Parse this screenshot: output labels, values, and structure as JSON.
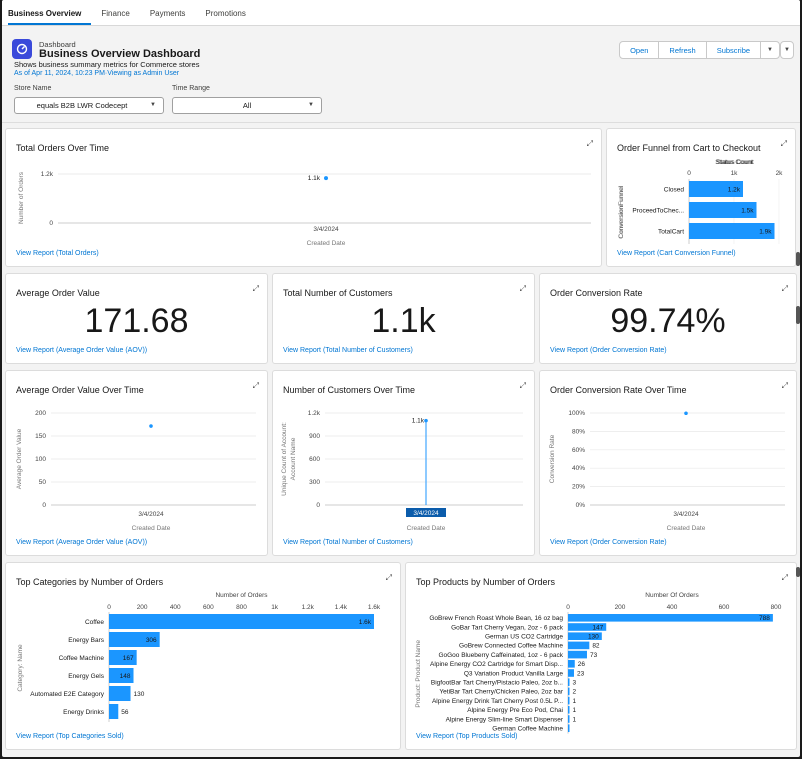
{
  "tabs": [
    "Business Overview",
    "Finance",
    "Payments",
    "Promotions"
  ],
  "header": {
    "eyebrow": "Dashboard",
    "title": "Business Overview Dashboard",
    "subtitle": "Shows business summary metrics for Commerce stores",
    "as_of": "As of Apr 11, 2024, 10:23 PM·Viewing as Admin User",
    "buttons": {
      "open": "Open",
      "refresh": "Refresh",
      "subscribe": "Subscribe"
    }
  },
  "filters": {
    "store_label": "Store Name",
    "store_value": "equals B2B LWR Codecept",
    "time_label": "Time Range",
    "time_value": "All"
  },
  "colors": {
    "bar": "#1b96ff",
    "link": "#0176d3",
    "dark_bar": "#0b5cab"
  },
  "cards": {
    "orders_time": {
      "title": "Total Orders Over Time",
      "report": "View Report (Total Orders)",
      "chart_data": {
        "type": "scatter",
        "ylabel": "Number of Orders",
        "xlabel": "Created Date",
        "y_ticks": [
          "1.2k",
          "0"
        ],
        "x": [
          "3/4/2024"
        ],
        "values": [
          1100
        ],
        "point_label": "1.1k",
        "ylim": [
          0,
          1200
        ]
      }
    },
    "funnel": {
      "title": "Order Funnel from Cart to Checkout",
      "report": "View Report (Cart Conversion Funnel)",
      "chart_data": {
        "type": "bar",
        "xlabel": "Status Count",
        "ylabel": "ConversionFunnel",
        "x_ticks": [
          "0",
          "1k",
          "2k"
        ],
        "xlim": [
          0,
          2000
        ],
        "categories": [
          "Closed",
          "ProceedToChec...",
          "TotalCart"
        ],
        "values": [
          1200,
          1500,
          1900
        ],
        "labels": [
          "1.2k",
          "1.5k",
          "1.9k"
        ]
      }
    },
    "aov": {
      "title": "Average Order Value",
      "value": "171.68",
      "report": "View Report (Average Order Value (AOV))"
    },
    "customers": {
      "title": "Total Number of Customers",
      "value": "1.1k",
      "report": "View Report (Total Number of Customers)"
    },
    "conversion": {
      "title": "Order Conversion Rate",
      "value": "99.74%",
      "report": "View Report (Order Conversion Rate)"
    },
    "aov_time": {
      "title": "Average Order Value Over Time",
      "report": "View Report (Average Order Value (AOV))",
      "chart_data": {
        "type": "scatter",
        "ylabel": "Average Order Value",
        "xlabel": "Created Date",
        "y_ticks": [
          "200",
          "150",
          "100",
          "50",
          "0"
        ],
        "ylim": [
          0,
          200
        ],
        "x": [
          "3/4/2024"
        ],
        "values": [
          171.68
        ]
      }
    },
    "customers_time": {
      "title": "Number of Customers Over Time",
      "report": "View Report (Total Number of Customers)",
      "chart_data": {
        "type": "scatter",
        "ylabel": "Unique Count of Account: Account Name",
        "xlabel": "Created Date",
        "y_ticks": [
          "1.2k",
          "900",
          "600",
          "300",
          "0"
        ],
        "ylim": [
          0,
          1200
        ],
        "x": [
          "3/4/2024"
        ],
        "values": [
          1100
        ],
        "point_label": "1.1k"
      }
    },
    "conversion_time": {
      "title": "Order Conversion Rate Over Time",
      "report": "View Report (Order Conversion Rate)",
      "chart_data": {
        "type": "scatter",
        "ylabel": "Conversion Rate",
        "xlabel": "Created Date",
        "y_ticks": [
          "100%",
          "80%",
          "60%",
          "40%",
          "20%",
          "0%"
        ],
        "ylim": [
          0,
          100
        ],
        "x": [
          "3/4/2024"
        ],
        "values": [
          99.74
        ]
      }
    },
    "top_categories": {
      "title": "Top Categories by Number of Orders",
      "report": "View Report (Top Categories Sold)",
      "chart_data": {
        "type": "bar",
        "xlabel": "Number of Orders",
        "ylabel": "Category: Name",
        "x_ticks": [
          "0",
          "200",
          "400",
          "600",
          "800",
          "1k",
          "1.2k",
          "1.4k",
          "1.6k"
        ],
        "xlim": [
          0,
          1600
        ],
        "categories": [
          "Coffee",
          "Energy Bars",
          "Coffee Machine",
          "Energy Gels",
          "Automated E2E Category",
          "Energy Drinks"
        ],
        "values": [
          1600,
          306,
          167,
          148,
          130,
          56
        ],
        "labels": [
          "1.6k",
          "306",
          "167",
          "148",
          "130",
          "56"
        ]
      }
    },
    "top_products": {
      "title": "Top Products by Number of Orders",
      "report": "View Report (Top Products Sold)",
      "chart_data": {
        "type": "bar",
        "xlabel": "Number Of Orders",
        "ylabel": "Product: Product Name",
        "x_ticks": [
          "0",
          "200",
          "400",
          "600",
          "800"
        ],
        "xlim": [
          0,
          800
        ],
        "categories": [
          "GoBrew French Roast Whole Bean, 16 oz bag",
          "GoBar Tart Cherry Vegan, 2oz - 6 pack",
          "German US CO2 Cartridge",
          "GoBrew Connected Coffee Machine",
          "GoGoo Blueberry Caffeinated, 1oz - 6 pack",
          "Alpine Energy CO2 Cartridge for Smart Disp...",
          "Q3 Variation Product Vanilla Large",
          "BigfootBar Tart Cherry/Pistacio Paleo, 2oz b...",
          "YetiBar Tart Cherry/Chicken Paleo, 2oz bar",
          "Alpine Energy Drink Tart Cherry Post 0.5L P...",
          "Alpine Energy Pre Eco Pod, Chai",
          "Alpine Energy Slim-line Smart Dispenser",
          "German Coffee Machine"
        ],
        "values": [
          788,
          147,
          130,
          82,
          73,
          26,
          23,
          3,
          2,
          1,
          1,
          1,
          1
        ],
        "labels": [
          "788",
          "147",
          "130",
          "82",
          "73",
          "26",
          "23",
          "3",
          "2",
          "1",
          "1",
          "1",
          ""
        ]
      }
    }
  }
}
